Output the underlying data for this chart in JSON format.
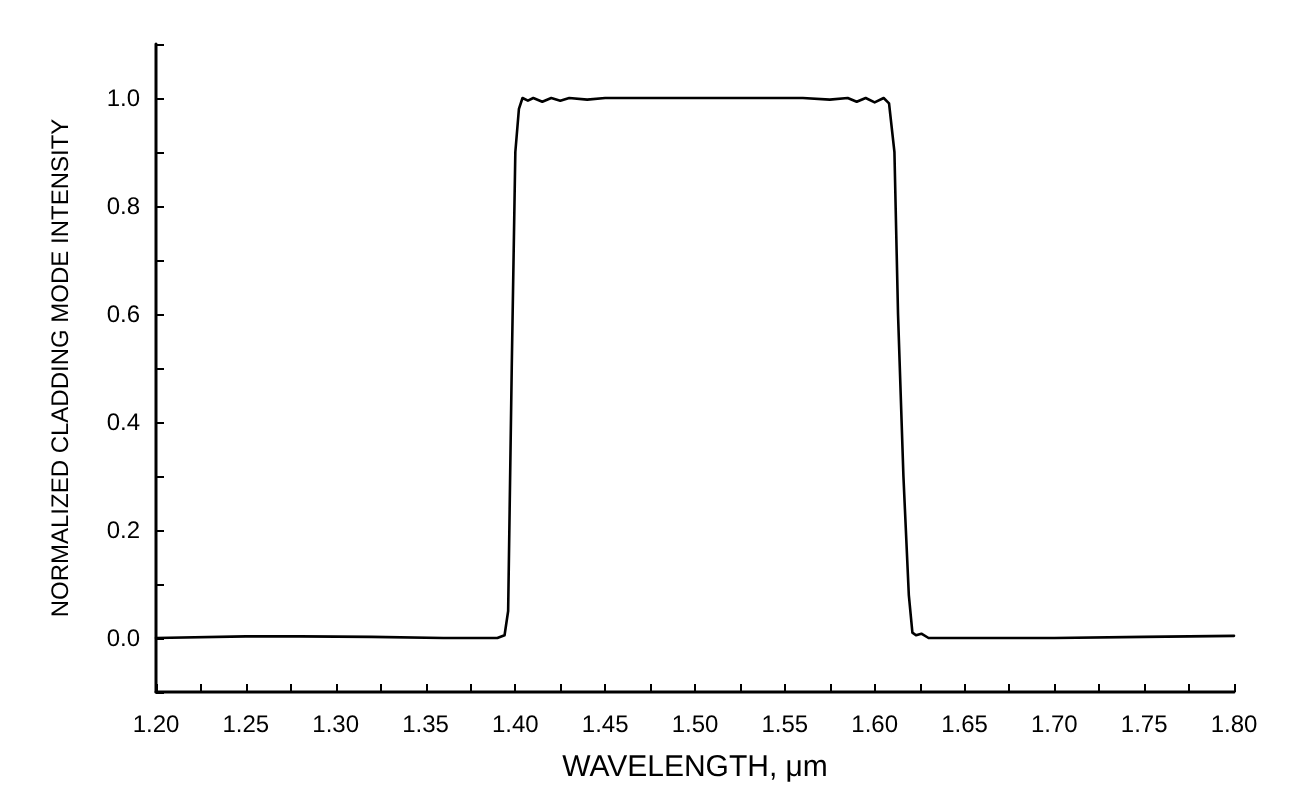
{
  "chart_data": {
    "type": "line",
    "xlabel": "WAVELENGTH, μm",
    "ylabel": "NORMALIZED CLADDING MODE INTENSITY",
    "grid": false,
    "marker": "none",
    "line_style": "solid",
    "xlim": [
      1.2,
      1.8
    ],
    "ylim": [
      -0.1,
      1.1
    ],
    "xticks": [
      {
        "value": 1.2,
        "label": "1.20"
      },
      {
        "value": 1.225,
        "label": null
      },
      {
        "value": 1.25,
        "label": "1.25"
      },
      {
        "value": 1.275,
        "label": null
      },
      {
        "value": 1.3,
        "label": "1.30"
      },
      {
        "value": 1.325,
        "label": null
      },
      {
        "value": 1.35,
        "label": "1.35"
      },
      {
        "value": 1.375,
        "label": null
      },
      {
        "value": 1.4,
        "label": "1.40"
      },
      {
        "value": 1.425,
        "label": null
      },
      {
        "value": 1.45,
        "label": "1.45"
      },
      {
        "value": 1.475,
        "label": null
      },
      {
        "value": 1.5,
        "label": "1.50"
      },
      {
        "value": 1.525,
        "label": null
      },
      {
        "value": 1.55,
        "label": "1.55"
      },
      {
        "value": 1.575,
        "label": null
      },
      {
        "value": 1.6,
        "label": "1.60"
      },
      {
        "value": 1.625,
        "label": null
      },
      {
        "value": 1.65,
        "label": "1.65"
      },
      {
        "value": 1.675,
        "label": null
      },
      {
        "value": 1.7,
        "label": "1.70"
      },
      {
        "value": 1.725,
        "label": null
      },
      {
        "value": 1.75,
        "label": "1.75"
      },
      {
        "value": 1.775,
        "label": null
      },
      {
        "value": 1.8,
        "label": "1.80"
      }
    ],
    "yticks": [
      {
        "value": -0.1,
        "label": null
      },
      {
        "value": 0,
        "label": "0.0"
      },
      {
        "value": 0.1,
        "label": null
      },
      {
        "value": 0.2,
        "label": "0.2"
      },
      {
        "value": 0.3,
        "label": null
      },
      {
        "value": 0.4,
        "label": "0.4"
      },
      {
        "value": 0.5,
        "label": null
      },
      {
        "value": 0.6,
        "label": "0.6"
      },
      {
        "value": 0.7,
        "label": null
      },
      {
        "value": 0.8,
        "label": "0.8"
      },
      {
        "value": 0.9,
        "label": null
      },
      {
        "value": 1.0,
        "label": "1.0"
      },
      {
        "value": 1.1,
        "label": null
      }
    ],
    "series": [
      {
        "color": "#000000",
        "x": [
          1.2,
          1.25,
          1.28,
          1.32,
          1.36,
          1.39,
          1.394,
          1.396,
          1.398,
          1.4,
          1.402,
          1.404,
          1.407,
          1.41,
          1.415,
          1.42,
          1.425,
          1.43,
          1.44,
          1.45,
          1.47,
          1.5,
          1.53,
          1.56,
          1.575,
          1.585,
          1.59,
          1.595,
          1.6,
          1.605,
          1.608,
          1.611,
          1.613,
          1.616,
          1.619,
          1.621,
          1.623,
          1.626,
          1.63,
          1.65,
          1.7,
          1.75,
          1.8
        ],
        "values": [
          0.0,
          0.003,
          0.003,
          0.002,
          0.0,
          0.0,
          0.005,
          0.05,
          0.5,
          0.9,
          0.98,
          1.0,
          0.995,
          1.0,
          0.993,
          1.0,
          0.995,
          1.0,
          0.997,
          1.0,
          1.0,
          1.0,
          1.0,
          1.0,
          0.997,
          1.0,
          0.993,
          1.0,
          0.992,
          1.0,
          0.99,
          0.9,
          0.6,
          0.3,
          0.08,
          0.01,
          0.005,
          0.008,
          0.0,
          0.0,
          0.0,
          0.002,
          0.004
        ]
      }
    ]
  }
}
